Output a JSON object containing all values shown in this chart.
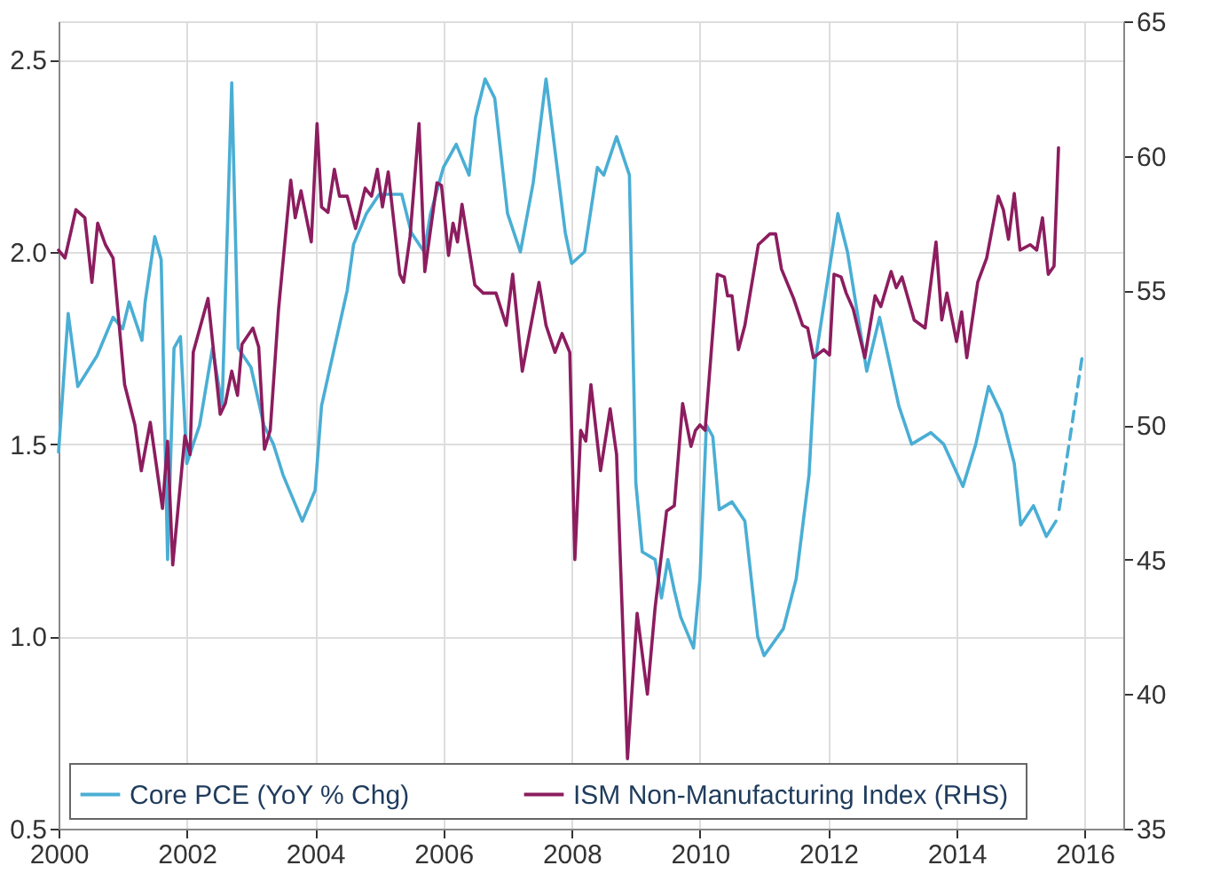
{
  "chart_data": {
    "type": "line",
    "xlim": [
      2000,
      2016.6
    ],
    "xticks": [
      2000,
      2002,
      2004,
      2006,
      2008,
      2010,
      2012,
      2014,
      2016
    ],
    "ylim": [
      0.5,
      2.6
    ],
    "yticks": [
      0.5,
      {
        "value": 1.0,
        "label": "1.0"
      },
      1.5,
      {
        "value": 2.0,
        "label": "2.0"
      },
      2.5
    ],
    "y2lim": [
      35,
      65
    ],
    "y2ticks": [
      35,
      40,
      45,
      50,
      55,
      60,
      65
    ],
    "grid": true,
    "legend": "bottom",
    "marker": "none",
    "series": [
      {
        "name": "Core PCE (YoY % Chg)",
        "color": "#4aaed4",
        "line_style": "solid",
        "x": [
          2000.0,
          2000.15,
          2000.3,
          2000.6,
          2000.85,
          2001.0,
          2001.1,
          2001.3,
          2001.35,
          2001.5,
          2001.6,
          2001.7,
          2001.8,
          2001.9,
          2002.0,
          2002.2,
          2002.4,
          2002.55,
          2002.7,
          2002.8,
          2003.0,
          2003.2,
          2003.35,
          2003.5,
          2003.8,
          2004.0,
          2004.1,
          2004.3,
          2004.5,
          2004.6,
          2004.8,
          2005.0,
          2005.2,
          2005.35,
          2005.5,
          2005.7,
          2005.8,
          2006.0,
          2006.2,
          2006.4,
          2006.5,
          2006.65,
          2006.8,
          2007.0,
          2007.2,
          2007.4,
          2007.6,
          2007.9,
          2008.0,
          2008.2,
          2008.4,
          2008.5,
          2008.7,
          2008.9,
          2009.0,
          2009.1,
          2009.3,
          2009.4,
          2009.5,
          2009.6,
          2009.7,
          2009.9,
          2010.0,
          2010.1,
          2010.2,
          2010.3,
          2010.5,
          2010.7,
          2010.9,
          2011.0,
          2011.3,
          2011.5,
          2011.7,
          2011.8,
          2012.15,
          2012.3,
          2012.6,
          2012.8,
          2013.1,
          2013.3,
          2013.6,
          2013.8,
          2014.1,
          2014.3,
          2014.5,
          2014.7,
          2014.9,
          2015.0,
          2015.2,
          2015.4,
          2015.55
        ],
        "values": [
          1.48,
          1.84,
          1.65,
          1.73,
          1.83,
          1.8,
          1.87,
          1.77,
          1.87,
          2.04,
          1.98,
          1.2,
          1.75,
          1.78,
          1.45,
          1.55,
          1.75,
          1.6,
          2.44,
          1.75,
          1.7,
          1.55,
          1.5,
          1.42,
          1.3,
          1.38,
          1.6,
          1.75,
          1.9,
          2.02,
          2.1,
          2.15,
          2.15,
          2.15,
          2.05,
          2.0,
          2.1,
          2.22,
          2.28,
          2.2,
          2.35,
          2.45,
          2.4,
          2.1,
          2.0,
          2.18,
          2.45,
          2.05,
          1.97,
          2.0,
          2.22,
          2.2,
          2.3,
          2.2,
          1.4,
          1.22,
          1.2,
          1.1,
          1.2,
          1.12,
          1.05,
          0.97,
          1.15,
          1.55,
          1.52,
          1.33,
          1.35,
          1.3,
          1.0,
          0.95,
          1.02,
          1.15,
          1.42,
          1.72,
          2.1,
          2.0,
          1.69,
          1.83,
          1.6,
          1.5,
          1.53,
          1.5,
          1.39,
          1.5,
          1.65,
          1.58,
          1.45,
          1.29,
          1.34,
          1.26,
          1.3
        ]
      },
      {
        "color": "#4aaed4",
        "line_style": "dashed",
        "x": [
          2015.6,
          2015.97
        ],
        "values": [
          1.33,
          1.74
        ]
      },
      {
        "name": "ISM Non-Manufacturing Index  (RHS)",
        "color": "#8c1d5f",
        "line_style": "solid",
        "axis": "y2",
        "x": [
          2000.0,
          2000.1,
          2000.27,
          2000.41,
          2000.52,
          2000.61,
          2000.73,
          2000.85,
          2001.03,
          2001.19,
          2001.29,
          2001.43,
          2001.62,
          2001.7,
          2001.78,
          2001.97,
          2002.05,
          2002.1,
          2002.33,
          2002.52,
          2002.6,
          2002.7,
          2002.79,
          2002.86,
          2003.03,
          2003.12,
          2003.21,
          2003.3,
          2003.43,
          2003.62,
          2003.69,
          2003.78,
          2003.94,
          2004.03,
          2004.1,
          2004.2,
          2004.3,
          2004.38,
          2004.5,
          2004.63,
          2004.78,
          2004.88,
          2004.97,
          2005.05,
          2005.14,
          2005.32,
          2005.38,
          2005.48,
          2005.62,
          2005.71,
          2005.9,
          2005.97,
          2006.08,
          2006.15,
          2006.22,
          2006.29,
          2006.49,
          2006.62,
          2006.82,
          2006.98,
          2007.08,
          2007.23,
          2007.49,
          2007.6,
          2007.74,
          2007.85,
          2007.97,
          2008.05,
          2008.14,
          2008.22,
          2008.3,
          2008.45,
          2008.6,
          2008.7,
          2008.87,
          2009.02,
          2009.18,
          2009.3,
          2009.48,
          2009.6,
          2009.73,
          2009.86,
          2009.93,
          2010.0,
          2010.08,
          2010.27,
          2010.38,
          2010.43,
          2010.5,
          2010.6,
          2010.7,
          2010.91,
          2011.09,
          2011.18,
          2011.27,
          2011.46,
          2011.6,
          2011.68,
          2011.77,
          2011.93,
          2012.02,
          2012.09,
          2012.2,
          2012.28,
          2012.39,
          2012.57,
          2012.73,
          2012.82,
          2012.98,
          2013.06,
          2013.15,
          2013.34,
          2013.51,
          2013.68,
          2013.77,
          2013.85,
          2014.0,
          2014.08,
          2014.16,
          2014.33,
          2014.47,
          2014.65,
          2014.73,
          2014.81,
          2014.9,
          2014.99,
          2015.15,
          2015.25,
          2015.34,
          2015.43,
          2015.52,
          2015.59
        ],
        "values": [
          56.5,
          56.2,
          58.0,
          57.7,
          55.3,
          57.5,
          56.7,
          56.2,
          51.5,
          50.0,
          48.3,
          50.1,
          46.9,
          49.4,
          44.8,
          49.6,
          48.9,
          52.7,
          54.7,
          50.4,
          50.8,
          52.0,
          51.1,
          53.0,
          53.6,
          52.9,
          49.1,
          49.8,
          54.3,
          59.1,
          57.7,
          58.7,
          56.8,
          61.2,
          58.1,
          57.9,
          59.5,
          58.5,
          58.5,
          57.3,
          58.8,
          58.5,
          59.5,
          58.1,
          59.4,
          55.6,
          55.3,
          57.0,
          61.2,
          55.7,
          59.0,
          58.9,
          56.3,
          57.5,
          56.8,
          58.2,
          55.2,
          54.9,
          54.9,
          53.7,
          55.6,
          52.0,
          55.3,
          53.7,
          52.7,
          53.4,
          52.7,
          45.0,
          49.8,
          49.4,
          51.5,
          48.3,
          50.6,
          48.9,
          37.6,
          43.0,
          40.0,
          43.2,
          46.8,
          47.0,
          50.8,
          49.2,
          49.8,
          50.0,
          49.8,
          55.6,
          55.5,
          54.8,
          54.8,
          52.8,
          53.7,
          56.7,
          57.1,
          57.1,
          55.8,
          54.7,
          53.7,
          53.6,
          52.5,
          52.8,
          52.6,
          55.6,
          55.5,
          54.9,
          54.3,
          52.5,
          54.8,
          54.4,
          55.7,
          55.1,
          55.5,
          53.9,
          53.6,
          56.8,
          53.9,
          54.9,
          53.1,
          54.2,
          52.5,
          55.3,
          56.2,
          58.5,
          58.0,
          56.9,
          58.6,
          56.5,
          56.7,
          56.5,
          57.7,
          55.6,
          55.9,
          60.3
        ]
      }
    ]
  }
}
